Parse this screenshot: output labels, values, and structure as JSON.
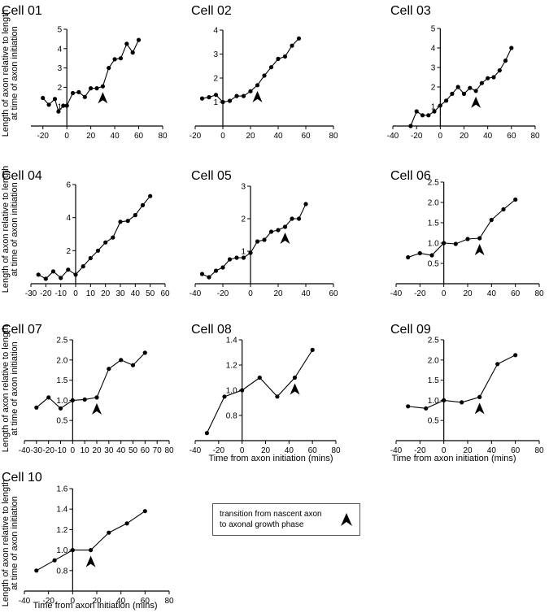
{
  "figure": {
    "ylabel_line1": "Length of axon relative to length",
    "ylabel_line2": "at time of axon initiation",
    "xlabel": "Time from axon initiation (mins)",
    "legend_text_line1": "transition from nascent axon",
    "legend_text_line2": "to axonal growth phase"
  },
  "chart_data": [
    {
      "type": "line",
      "title": "Cell 01",
      "xlim": [
        -30,
        80
      ],
      "ylim": [
        0,
        5
      ],
      "xticks": [
        -20,
        0,
        20,
        40,
        60,
        80
      ],
      "yticks": [
        1,
        2,
        3,
        4,
        5
      ],
      "series": [
        {
          "x": [
            -20,
            -15,
            -10,
            -7,
            -3,
            0,
            5,
            10,
            15,
            20,
            25,
            30,
            35,
            40,
            45,
            50,
            55,
            60
          ],
          "values": [
            1.45,
            1.1,
            1.4,
            0.75,
            1.05,
            1.05,
            1.7,
            1.75,
            1.5,
            1.95,
            1.95,
            2.05,
            3.0,
            3.45,
            3.5,
            4.25,
            3.8,
            4.45
          ]
        }
      ],
      "arrow_x": 30
    },
    {
      "type": "line",
      "title": "Cell 02",
      "xlim": [
        -20,
        80
      ],
      "ylim": [
        0,
        4
      ],
      "xticks": [
        -20,
        0,
        20,
        40,
        60,
        80
      ],
      "yticks": [
        1,
        2,
        3,
        4
      ],
      "series": [
        {
          "x": [
            -15,
            -10,
            -5,
            0,
            5,
            10,
            15,
            20,
            25,
            30,
            35,
            40,
            45,
            50,
            55
          ],
          "values": [
            1.15,
            1.2,
            1.3,
            1.0,
            1.05,
            1.25,
            1.25,
            1.45,
            1.7,
            2.1,
            2.45,
            2.8,
            2.9,
            3.35,
            3.65
          ]
        }
      ],
      "arrow_x": 25
    },
    {
      "type": "line",
      "title": "Cell 03",
      "xlim": [
        -40,
        80
      ],
      "ylim": [
        0,
        5
      ],
      "xticks": [
        -40,
        -20,
        0,
        20,
        40,
        60,
        80
      ],
      "yticks": [
        1,
        2,
        3,
        4,
        5
      ],
      "series": [
        {
          "x": [
            -25,
            -20,
            -15,
            -10,
            -5,
            0,
            5,
            10,
            15,
            20,
            25,
            30,
            35,
            40,
            45,
            50,
            55,
            60
          ],
          "values": [
            0.0,
            0.75,
            0.55,
            0.55,
            0.75,
            1.05,
            1.3,
            1.65,
            2.0,
            1.65,
            1.95,
            1.8,
            2.2,
            2.45,
            2.5,
            2.85,
            3.35,
            4.0
          ]
        }
      ],
      "arrow_x": 30
    },
    {
      "type": "line",
      "title": "Cell 04",
      "xlim": [
        -30,
        60
      ],
      "ylim": [
        0,
        6
      ],
      "xticks": [
        -30,
        -20,
        -10,
        0,
        10,
        20,
        30,
        40,
        50,
        60
      ],
      "yticks": [
        2,
        4,
        6
      ],
      "series": [
        {
          "x": [
            -25,
            -20,
            -15,
            -10,
            -5,
            0,
            5,
            10,
            15,
            20,
            25,
            30,
            35,
            40,
            45,
            50
          ],
          "values": [
            0.55,
            0.3,
            0.75,
            0.35,
            0.85,
            0.55,
            1.05,
            1.55,
            2.0,
            2.5,
            2.8,
            3.75,
            3.8,
            4.15,
            4.75,
            5.3
          ]
        }
      ],
      "arrow_x": null
    },
    {
      "type": "line",
      "title": "Cell 05",
      "xlim": [
        -40,
        60
      ],
      "ylim": [
        0,
        3
      ],
      "xticks": [
        -40,
        -20,
        0,
        20,
        40,
        60
      ],
      "yticks": [
        1,
        2,
        3
      ],
      "series": [
        {
          "x": [
            -35,
            -30,
            -25,
            -20,
            -15,
            -10,
            -5,
            0,
            5,
            10,
            15,
            20,
            25,
            30,
            35,
            40
          ],
          "values": [
            0.3,
            0.2,
            0.4,
            0.5,
            0.75,
            0.8,
            0.8,
            0.95,
            1.3,
            1.35,
            1.6,
            1.65,
            1.75,
            2.0,
            2.0,
            2.45
          ]
        }
      ],
      "arrow_x": 25
    },
    {
      "type": "line",
      "title": "Cell 06",
      "xlim": [
        -40,
        80
      ],
      "ylim": [
        0,
        2.5
      ],
      "xticks": [
        -40,
        -20,
        0,
        20,
        40,
        60,
        80
      ],
      "yticks": [
        0.5,
        1.0,
        1.5,
        2.0,
        2.5
      ],
      "series": [
        {
          "x": [
            -30,
            -20,
            -10,
            0,
            10,
            20,
            30,
            40,
            50,
            60
          ],
          "values": [
            0.65,
            0.75,
            0.7,
            1.0,
            0.98,
            1.1,
            1.12,
            1.57,
            1.83,
            2.07
          ]
        }
      ],
      "arrow_x": 30
    },
    {
      "type": "line",
      "title": "Cell 07",
      "xlim": [
        -40,
        80
      ],
      "ylim": [
        0,
        2.5
      ],
      "xticks": [
        -40,
        -30,
        -20,
        -10,
        0,
        10,
        20,
        30,
        40,
        50,
        60,
        70,
        80
      ],
      "yticks": [
        0.5,
        1.0,
        1.5,
        2.0,
        2.5
      ],
      "series": [
        {
          "x": [
            -30,
            -20,
            -10,
            0,
            10,
            20,
            30,
            40,
            50,
            60
          ],
          "values": [
            0.82,
            1.07,
            0.8,
            1.0,
            1.02,
            1.07,
            1.78,
            2.0,
            1.87,
            2.18
          ]
        }
      ],
      "arrow_x": 20
    },
    {
      "type": "line",
      "title": "Cell 08",
      "xlim": [
        -40,
        80
      ],
      "ylim": [
        0.6,
        1.4
      ],
      "xticks": [
        -40,
        -20,
        0,
        20,
        40,
        60,
        80
      ],
      "yticks": [
        0.8,
        1.0,
        1.2,
        1.4
      ],
      "series": [
        {
          "x": [
            -30,
            -15,
            0,
            15,
            30,
            45,
            60
          ],
          "values": [
            0.66,
            0.95,
            1.0,
            1.1,
            0.95,
            1.1,
            1.32
          ]
        }
      ],
      "arrow_x": 45
    },
    {
      "type": "line",
      "title": "Cell 09",
      "xlim": [
        -40,
        80
      ],
      "ylim": [
        0,
        2.5
      ],
      "xticks": [
        -40,
        -20,
        0,
        20,
        40,
        60,
        80
      ],
      "yticks": [
        0.5,
        1.0,
        1.5,
        2.0,
        2.5
      ],
      "series": [
        {
          "x": [
            -30,
            -15,
            0,
            15,
            30,
            45,
            60
          ],
          "values": [
            0.85,
            0.8,
            1.0,
            0.95,
            1.08,
            1.9,
            2.12
          ]
        }
      ],
      "arrow_x": 30
    },
    {
      "type": "line",
      "title": "Cell 10",
      "xlim": [
        -40,
        80
      ],
      "ylim": [
        0.6,
        1.6
      ],
      "xticks": [
        -40,
        -20,
        0,
        20,
        40,
        60,
        80
      ],
      "yticks": [
        0.8,
        1.0,
        1.2,
        1.4,
        1.6
      ],
      "series": [
        {
          "x": [
            -30,
            -15,
            0,
            15,
            30,
            45,
            60
          ],
          "values": [
            0.8,
            0.9,
            1.0,
            1.0,
            1.17,
            1.26,
            1.38
          ]
        }
      ],
      "arrow_x": 15
    }
  ]
}
